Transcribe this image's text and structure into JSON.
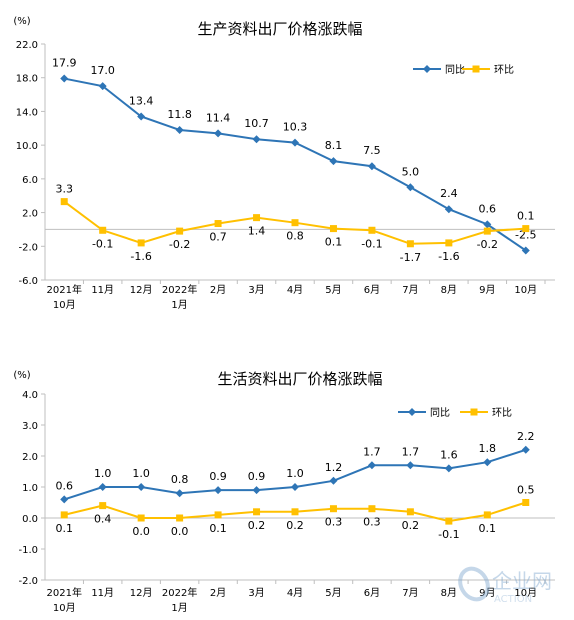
{
  "chart_data": [
    {
      "type": "line",
      "title": "生产资料出厂价格涨跌幅",
      "ylabel": "(%)",
      "ylim": [
        -6.0,
        22.0
      ],
      "yticks": [
        "22.0",
        "18.0",
        "14.0",
        "10.0",
        "6.0",
        "2.0",
        "-2.0",
        "-6.0"
      ],
      "grid": false,
      "legend_position": "top-right",
      "categories": [
        "2021年 10月",
        "11月",
        "12月",
        "2022年 1月",
        "2月",
        "3月",
        "4月",
        "5月",
        "6月",
        "7月",
        "8月",
        "9月",
        "10月"
      ],
      "series": [
        {
          "name": "同比",
          "color": "#2E75B6",
          "values": [
            17.9,
            17.0,
            13.4,
            11.8,
            11.4,
            10.7,
            10.3,
            8.1,
            7.5,
            5.0,
            2.4,
            0.6,
            -2.5
          ]
        },
        {
          "name": "环比",
          "color": "#FFC000",
          "values": [
            3.3,
            -0.1,
            -1.6,
            -0.2,
            0.7,
            1.4,
            0.8,
            0.1,
            -0.1,
            -1.7,
            -1.6,
            -0.2,
            0.1
          ]
        }
      ]
    },
    {
      "type": "line",
      "title": "生活资料出厂价格涨跌幅",
      "ylabel": "(%)",
      "ylim": [
        -2.0,
        4.0
      ],
      "yticks": [
        "4.0",
        "3.0",
        "2.0",
        "1.0",
        "0.0",
        "-1.0",
        "-2.0"
      ],
      "grid": false,
      "legend_position": "top-right",
      "categories": [
        "2021年 10月",
        "11月",
        "12月",
        "2022年 1月",
        "2月",
        "3月",
        "4月",
        "5月",
        "6月",
        "7月",
        "8月",
        "9月",
        "10月"
      ],
      "series": [
        {
          "name": "同比",
          "color": "#2E75B6",
          "values": [
            0.6,
            1.0,
            1.0,
            0.8,
            0.9,
            0.9,
            1.0,
            1.2,
            1.7,
            1.7,
            1.6,
            1.8,
            2.2
          ]
        },
        {
          "name": "环比",
          "color": "#FFC000",
          "values": [
            0.1,
            0.4,
            0.0,
            0.0,
            0.1,
            0.2,
            0.2,
            0.3,
            0.3,
            0.2,
            -0.1,
            0.1,
            0.5
          ]
        }
      ]
    }
  ],
  "watermark": {
    "text": "企业网",
    "subtext": "ACTION"
  }
}
